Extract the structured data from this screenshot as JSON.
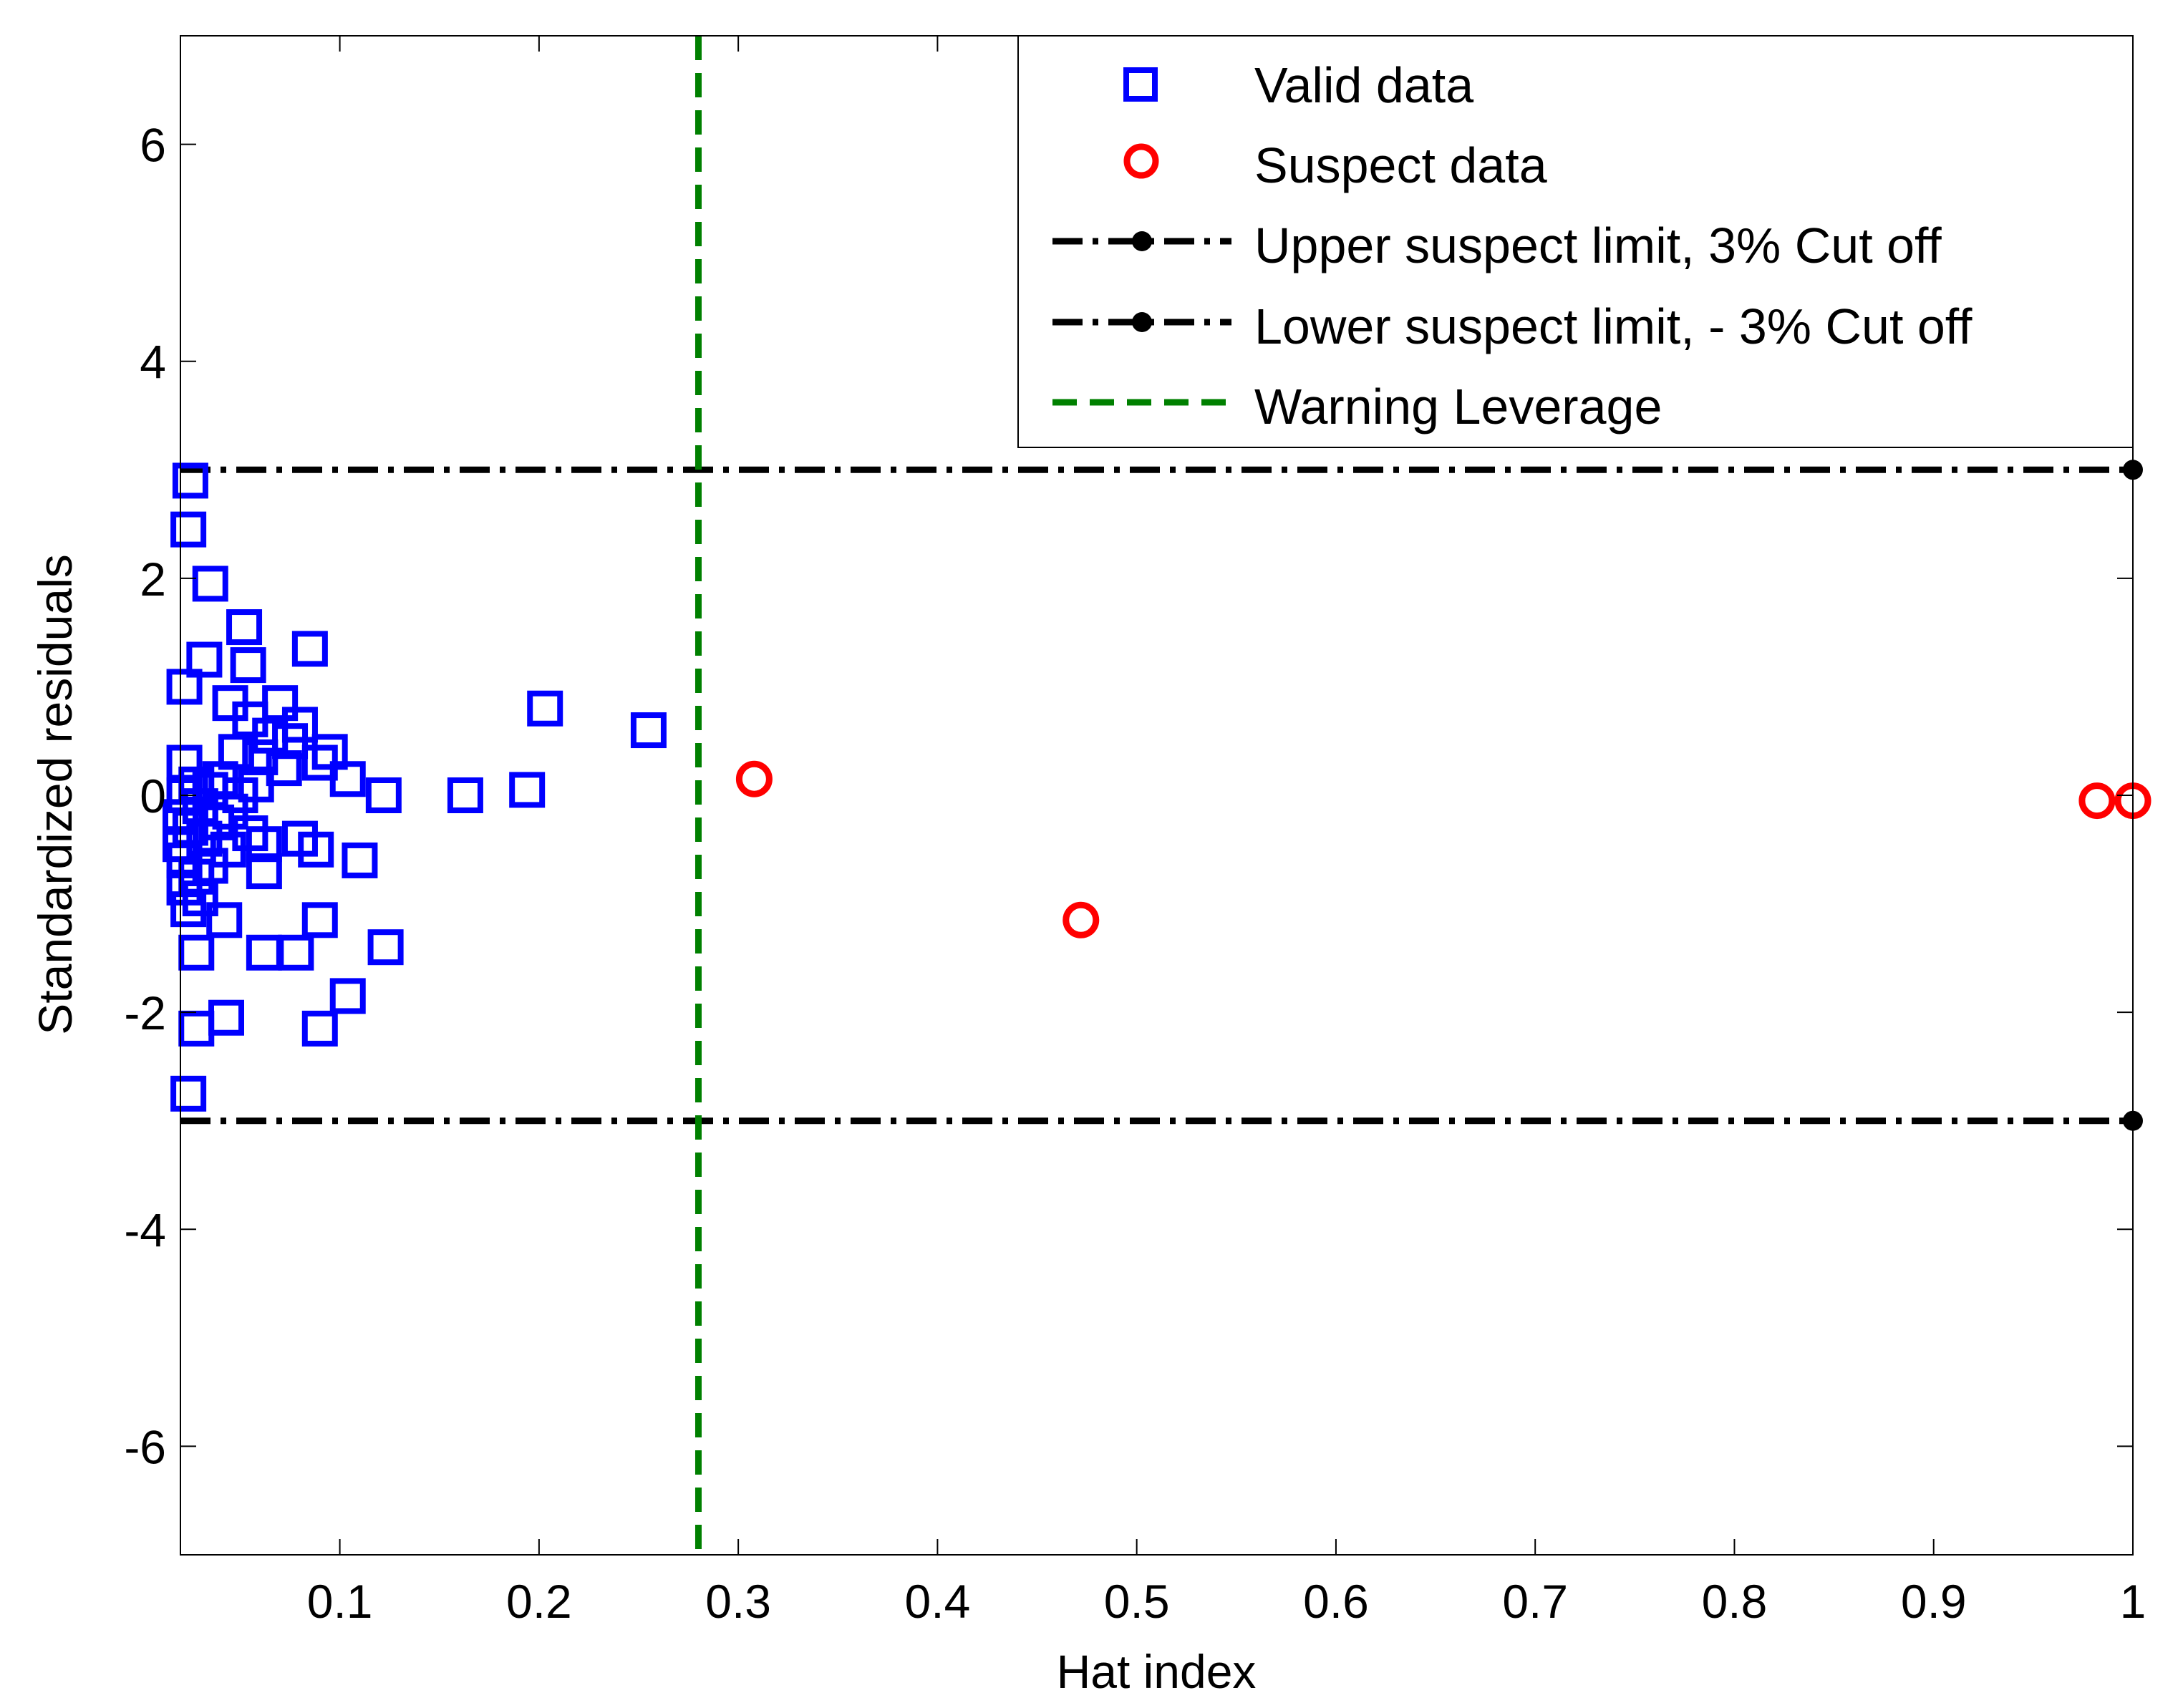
{
  "chart_data": {
    "type": "scatter",
    "title": "",
    "xlabel": "Hat index",
    "ylabel": "Standardized residuals",
    "xlim": [
      0.02,
      1.0
    ],
    "ylim": [
      -7,
      7
    ],
    "xticks": [
      0.1,
      0.2,
      0.3,
      0.4,
      0.5,
      0.6,
      0.7,
      0.8,
      0.9,
      1.0
    ],
    "xtick_labels": [
      "0.1",
      "0.2",
      "0.3",
      "0.4",
      "0.5",
      "0.6",
      "0.7",
      "0.8",
      "0.9",
      "1"
    ],
    "yticks": [
      -6,
      -4,
      -2,
      0,
      2,
      4,
      6
    ],
    "ytick_labels": [
      "-6",
      "-4",
      "-2",
      "0",
      "2",
      "4",
      "6"
    ],
    "grid": false,
    "legend_position": "top-right",
    "colors": {
      "valid": "#0000ff",
      "suspect": "#ff0000",
      "limit": "#000000",
      "warning": "#008000"
    },
    "series": [
      {
        "name": "Valid data",
        "marker": "square",
        "color": "#0000ff",
        "points": [
          [
            0.025,
            2.9
          ],
          [
            0.024,
            2.45
          ],
          [
            0.035,
            1.95
          ],
          [
            0.052,
            1.55
          ],
          [
            0.032,
            1.25
          ],
          [
            0.054,
            1.2
          ],
          [
            0.022,
            1.0
          ],
          [
            0.085,
            1.35
          ],
          [
            0.045,
            0.85
          ],
          [
            0.07,
            0.85
          ],
          [
            0.055,
            0.7
          ],
          [
            0.08,
            0.65
          ],
          [
            0.065,
            0.55
          ],
          [
            0.075,
            0.5
          ],
          [
            0.095,
            0.4
          ],
          [
            0.048,
            0.4
          ],
          [
            0.06,
            0.35
          ],
          [
            0.09,
            0.3
          ],
          [
            0.022,
            0.3
          ],
          [
            0.072,
            0.25
          ],
          [
            0.104,
            0.15
          ],
          [
            0.04,
            0.15
          ],
          [
            0.028,
            0.1
          ],
          [
            0.058,
            0.1
          ],
          [
            0.035,
            0.05
          ],
          [
            0.022,
            0.0
          ],
          [
            0.05,
            0.0
          ],
          [
            0.122,
            0.0
          ],
          [
            0.163,
            0.0
          ],
          [
            0.194,
            0.05
          ],
          [
            0.203,
            0.8
          ],
          [
            0.255,
            0.6
          ],
          [
            0.03,
            -0.1
          ],
          [
            0.045,
            -0.15
          ],
          [
            0.02,
            -0.2
          ],
          [
            0.038,
            -0.25
          ],
          [
            0.025,
            -0.3
          ],
          [
            0.055,
            -0.35
          ],
          [
            0.032,
            -0.4
          ],
          [
            0.02,
            -0.45
          ],
          [
            0.062,
            -0.45
          ],
          [
            0.08,
            -0.4
          ],
          [
            0.044,
            -0.5
          ],
          [
            0.088,
            -0.5
          ],
          [
            0.022,
            -0.6
          ],
          [
            0.035,
            -0.65
          ],
          [
            0.11,
            -0.6
          ],
          [
            0.062,
            -0.7
          ],
          [
            0.028,
            -0.75
          ],
          [
            0.022,
            -0.85
          ],
          [
            0.03,
            -0.95
          ],
          [
            0.024,
            -1.05
          ],
          [
            0.042,
            -1.15
          ],
          [
            0.09,
            -1.15
          ],
          [
            0.028,
            -1.45
          ],
          [
            0.062,
            -1.45
          ],
          [
            0.078,
            -1.45
          ],
          [
            0.123,
            -1.4
          ],
          [
            0.104,
            -1.85
          ],
          [
            0.043,
            -2.05
          ],
          [
            0.028,
            -2.15
          ],
          [
            0.09,
            -2.15
          ],
          [
            0.024,
            -2.75
          ]
        ]
      },
      {
        "name": "Suspect data",
        "marker": "circle",
        "color": "#ff0000",
        "points": [
          [
            0.308,
            0.15
          ],
          [
            0.472,
            -1.15
          ],
          [
            0.982,
            -0.05
          ],
          [
            1.0,
            -0.05
          ]
        ]
      },
      {
        "name": "Upper suspect limit, 3% Cut off",
        "style": "dash-dot",
        "color": "#000000",
        "y": 3.0,
        "x_range": [
          0.02,
          1.0
        ],
        "end_marker": "dot"
      },
      {
        "name": "Lower suspect limit, - 3% Cut off",
        "style": "dash-dot",
        "color": "#000000",
        "y": -3.0,
        "x_range": [
          0.02,
          1.0
        ],
        "end_marker": "dot"
      },
      {
        "name": "Warning Leverage",
        "style": "dashed",
        "color": "#008000",
        "x": 0.28,
        "y_range": [
          -7,
          7
        ]
      }
    ]
  }
}
